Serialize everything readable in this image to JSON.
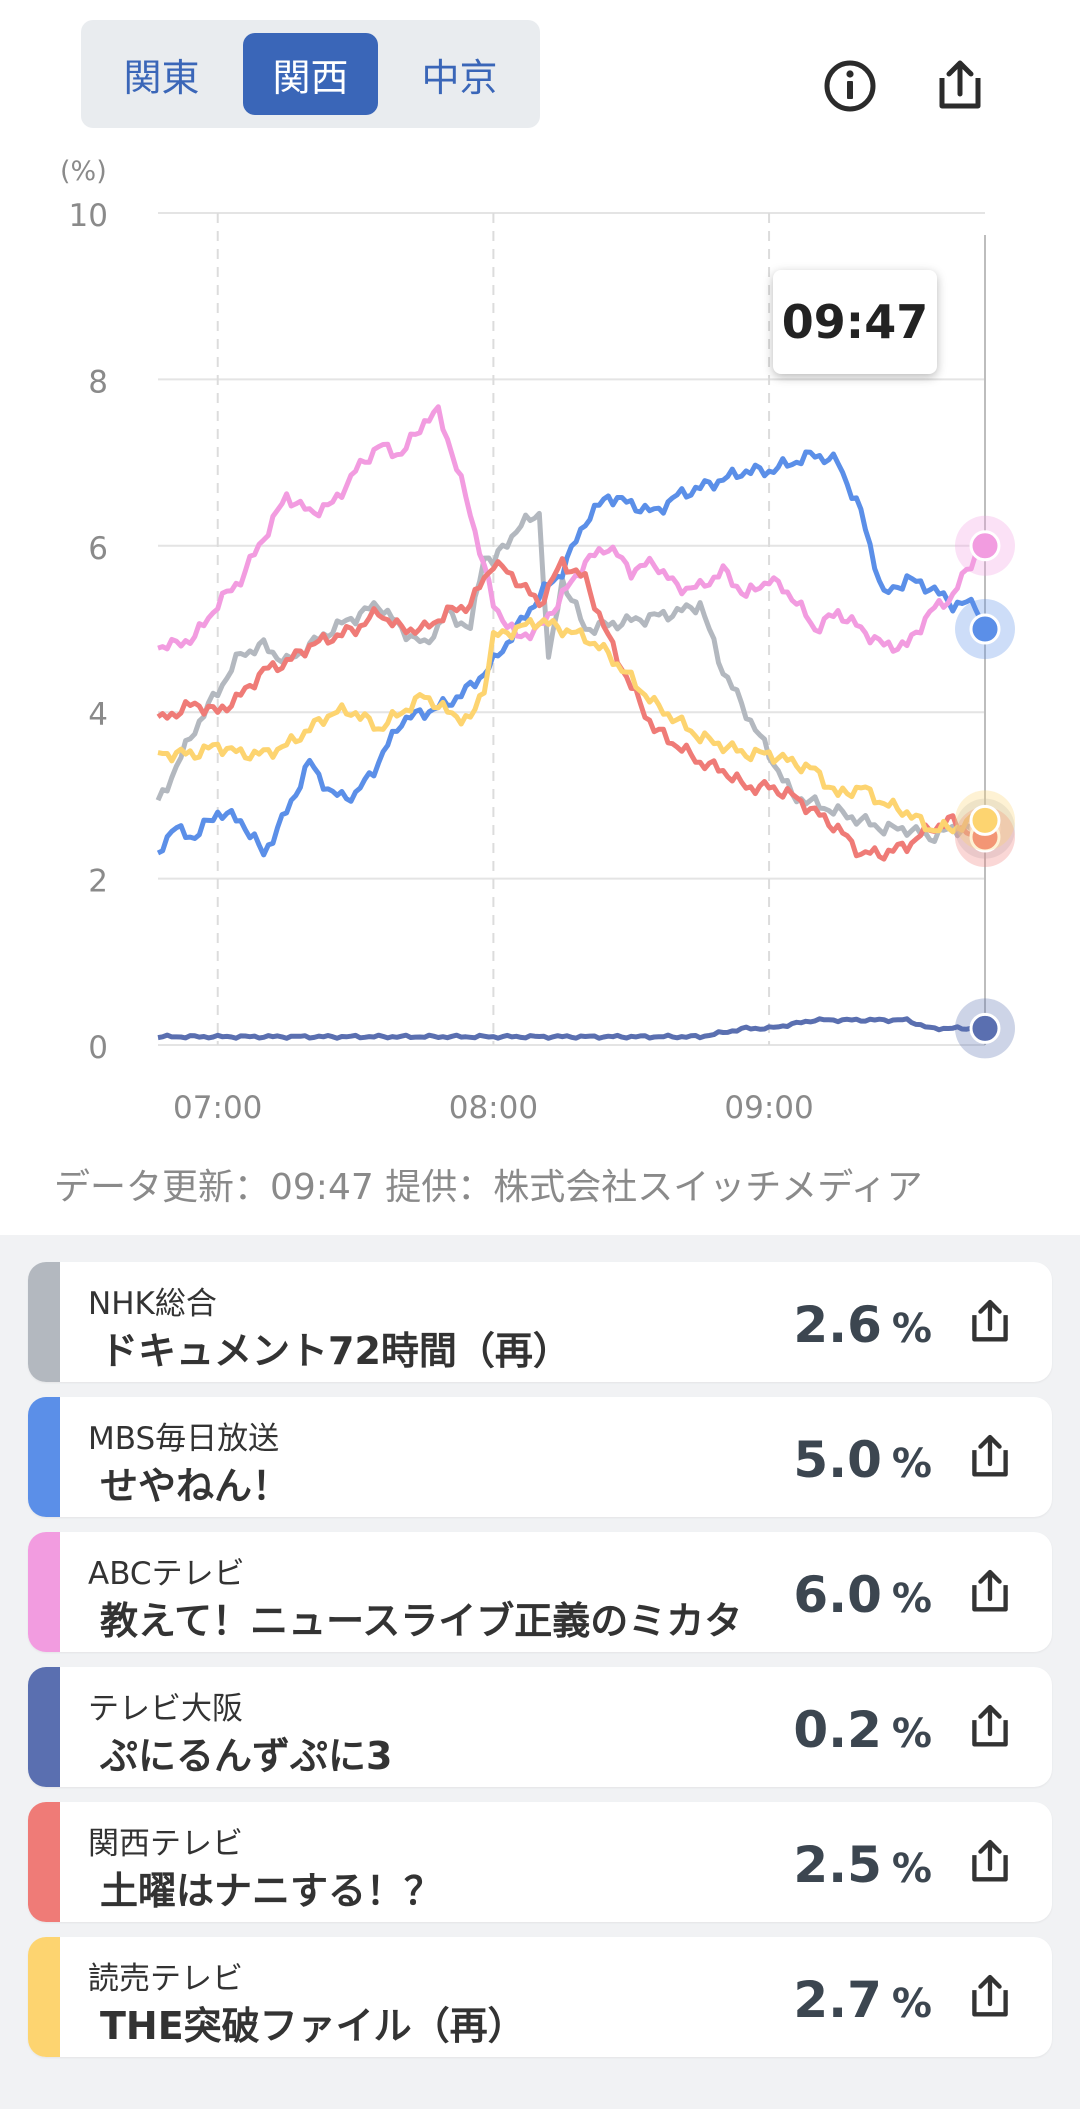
{
  "regions": {
    "tabs": [
      "関東",
      "関西",
      "中京"
    ],
    "selected": "関西"
  },
  "icons": {
    "info": "info-circle-icon",
    "share": "share-upload-icon"
  },
  "tooltip": {
    "time": "09:47"
  },
  "chart_data": {
    "type": "line",
    "unit_label": "(%)",
    "ylim": [
      0,
      10
    ],
    "yticks": [
      "0",
      "2",
      "4",
      "6",
      "8",
      "10"
    ],
    "xticks": [
      "07:00",
      "08:00",
      "09:00"
    ],
    "x_range": [
      "06:47",
      "09:47"
    ],
    "grid": true,
    "series": [
      {
        "name": "NHK総合",
        "color": "#b3b8bf",
        "x": [
          "06:47",
          "06:55",
          "07:05",
          "07:10",
          "07:15",
          "07:25",
          "07:35",
          "07:40",
          "07:45",
          "07:50",
          "07:55",
          "07:58",
          "08:00",
          "08:05",
          "08:10",
          "08:12",
          "08:15",
          "08:20",
          "08:30",
          "08:40",
          "08:45",
          "08:50",
          "08:55",
          "09:00",
          "09:05",
          "09:10",
          "09:15",
          "09:20",
          "09:25",
          "09:30",
          "09:35",
          "09:40",
          "09:45",
          "09:47"
        ],
        "values": [
          2.9,
          3.8,
          4.7,
          4.8,
          4.6,
          5.0,
          5.3,
          5.0,
          4.8,
          5.2,
          5.0,
          5.9,
          5.8,
          6.2,
          6.4,
          4.6,
          5.6,
          5.0,
          5.1,
          5.2,
          5.3,
          4.5,
          4.0,
          3.5,
          3.0,
          2.9,
          2.8,
          2.7,
          2.6,
          2.6,
          2.5,
          2.6,
          2.6,
          2.6
        ]
      },
      {
        "name": "MBS毎日放送",
        "color": "#5b8fe8",
        "x": [
          "06:47",
          "06:50",
          "06:55",
          "07:00",
          "07:05",
          "07:10",
          "07:15",
          "07:20",
          "07:25",
          "07:30",
          "07:35",
          "07:40",
          "07:45",
          "07:50",
          "07:55",
          "08:00",
          "08:05",
          "08:10",
          "08:15",
          "08:20",
          "08:25",
          "08:30",
          "08:35",
          "08:40",
          "08:45",
          "08:50",
          "08:55",
          "09:00",
          "09:05",
          "09:10",
          "09:15",
          "09:20",
          "09:25",
          "09:30",
          "09:35",
          "09:40",
          "09:45",
          "09:47"
        ],
        "values": [
          2.3,
          2.6,
          2.5,
          2.8,
          2.7,
          2.3,
          2.8,
          3.4,
          3.0,
          3.0,
          3.4,
          3.9,
          4.0,
          4.1,
          4.3,
          4.6,
          5.0,
          5.4,
          5.7,
          6.3,
          6.6,
          6.5,
          6.4,
          6.6,
          6.7,
          6.8,
          6.9,
          6.9,
          7.0,
          7.1,
          7.0,
          6.4,
          5.4,
          5.6,
          5.5,
          5.3,
          5.3,
          5.0
        ]
      },
      {
        "name": "ABCテレビ",
        "color": "#f29ce0",
        "x": [
          "06:47",
          "06:50",
          "06:55",
          "07:00",
          "07:05",
          "07:10",
          "07:15",
          "07:20",
          "07:25",
          "07:30",
          "07:35",
          "07:40",
          "07:45",
          "07:48",
          "07:50",
          "07:55",
          "08:00",
          "08:05",
          "08:10",
          "08:15",
          "08:20",
          "08:25",
          "08:30",
          "08:35",
          "08:40",
          "08:45",
          "08:50",
          "08:55",
          "09:00",
          "09:05",
          "09:10",
          "09:15",
          "09:20",
          "09:25",
          "09:30",
          "09:35",
          "09:40",
          "09:45",
          "09:47"
        ],
        "values": [
          4.8,
          4.8,
          4.9,
          5.3,
          5.6,
          6.1,
          6.6,
          6.4,
          6.5,
          6.9,
          7.2,
          7.1,
          7.5,
          7.6,
          7.3,
          6.4,
          5.3,
          4.9,
          5.0,
          5.4,
          5.8,
          6.0,
          5.7,
          5.8,
          5.5,
          5.5,
          5.7,
          5.4,
          5.6,
          5.4,
          5.0,
          5.2,
          5.0,
          4.8,
          4.8,
          5.2,
          5.4,
          5.9,
          6.0
        ]
      },
      {
        "name": "テレビ大阪",
        "color": "#5a6fb0",
        "x": [
          "06:47",
          "07:00",
          "07:15",
          "07:30",
          "07:45",
          "08:00",
          "08:15",
          "08:30",
          "08:45",
          "08:55",
          "09:00",
          "09:10",
          "09:20",
          "09:25",
          "09:30",
          "09:35",
          "09:40",
          "09:47"
        ],
        "values": [
          0.1,
          0.1,
          0.1,
          0.1,
          0.1,
          0.1,
          0.1,
          0.1,
          0.1,
          0.2,
          0.2,
          0.3,
          0.3,
          0.3,
          0.3,
          0.2,
          0.2,
          0.2
        ]
      },
      {
        "name": "関西テレビ",
        "color": "#ef7b77",
        "x": [
          "06:47",
          "06:55",
          "07:00",
          "07:05",
          "07:10",
          "07:15",
          "07:20",
          "07:25",
          "07:30",
          "07:35",
          "07:40",
          "07:45",
          "07:50",
          "07:55",
          "08:00",
          "08:05",
          "08:10",
          "08:15",
          "08:20",
          "08:25",
          "08:30",
          "08:35",
          "08:40",
          "08:45",
          "08:50",
          "08:55",
          "09:00",
          "09:05",
          "09:10",
          "09:15",
          "09:20",
          "09:25",
          "09:30",
          "09:35",
          "09:40",
          "09:45",
          "09:47"
        ],
        "values": [
          3.9,
          4.1,
          4.0,
          4.2,
          4.5,
          4.6,
          4.8,
          4.9,
          5.0,
          5.2,
          5.0,
          5.0,
          5.2,
          5.3,
          5.8,
          5.6,
          5.3,
          5.8,
          5.6,
          4.9,
          4.3,
          3.8,
          3.6,
          3.4,
          3.3,
          3.1,
          3.1,
          3.0,
          2.8,
          2.6,
          2.3,
          2.3,
          2.4,
          2.6,
          2.7,
          2.5,
          2.5
        ]
      },
      {
        "name": "読売テレビ",
        "color": "#fdd470",
        "x": [
          "06:47",
          "06:55",
          "07:00",
          "07:05",
          "07:10",
          "07:15",
          "07:20",
          "07:25",
          "07:30",
          "07:35",
          "07:40",
          "07:45",
          "07:50",
          "07:55",
          "07:58",
          "08:00",
          "08:05",
          "08:10",
          "08:15",
          "08:20",
          "08:25",
          "08:30",
          "08:35",
          "08:40",
          "08:45",
          "08:50",
          "08:55",
          "09:00",
          "09:05",
          "09:10",
          "09:15",
          "09:20",
          "09:25",
          "09:30",
          "09:35",
          "09:40",
          "09:45",
          "09:47"
        ],
        "values": [
          3.5,
          3.5,
          3.6,
          3.5,
          3.5,
          3.6,
          3.8,
          4.0,
          4.0,
          3.8,
          4.0,
          4.2,
          4.0,
          3.9,
          4.3,
          4.9,
          5.0,
          5.1,
          5.0,
          4.9,
          4.7,
          4.4,
          4.1,
          3.9,
          3.7,
          3.6,
          3.5,
          3.5,
          3.4,
          3.3,
          3.0,
          3.1,
          2.9,
          2.8,
          2.6,
          2.6,
          2.7,
          2.7
        ]
      }
    ]
  },
  "footer": {
    "data_update": "データ更新：09:47 提供：株式会社スイッチメディア"
  },
  "list": {
    "items": [
      {
        "channel": "NHK総合",
        "program": "ドキュメント72時間（再）",
        "rating": "2.6",
        "unit": "%",
        "color": "#b3b8bf"
      },
      {
        "channel": "MBS毎日放送",
        "program": "せやねん！",
        "rating": "5.0",
        "unit": "%",
        "color": "#5b8fe8"
      },
      {
        "channel": "ABCテレビ",
        "program": "教えて！ニュースライブ正義のミカタ",
        "rating": "6.0",
        "unit": "%",
        "color": "#f29ce0"
      },
      {
        "channel": "テレビ大阪",
        "program": "ぷにるんずぷに3",
        "rating": "0.2",
        "unit": "%",
        "color": "#5a6fb0"
      },
      {
        "channel": "関西テレビ",
        "program": "土曜はナニする！？",
        "rating": "2.5",
        "unit": "%",
        "color": "#ef7b77"
      },
      {
        "channel": "読売テレビ",
        "program": "THE突破ファイル（再）",
        "rating": "2.7",
        "unit": "%",
        "color": "#fdd470"
      }
    ]
  }
}
